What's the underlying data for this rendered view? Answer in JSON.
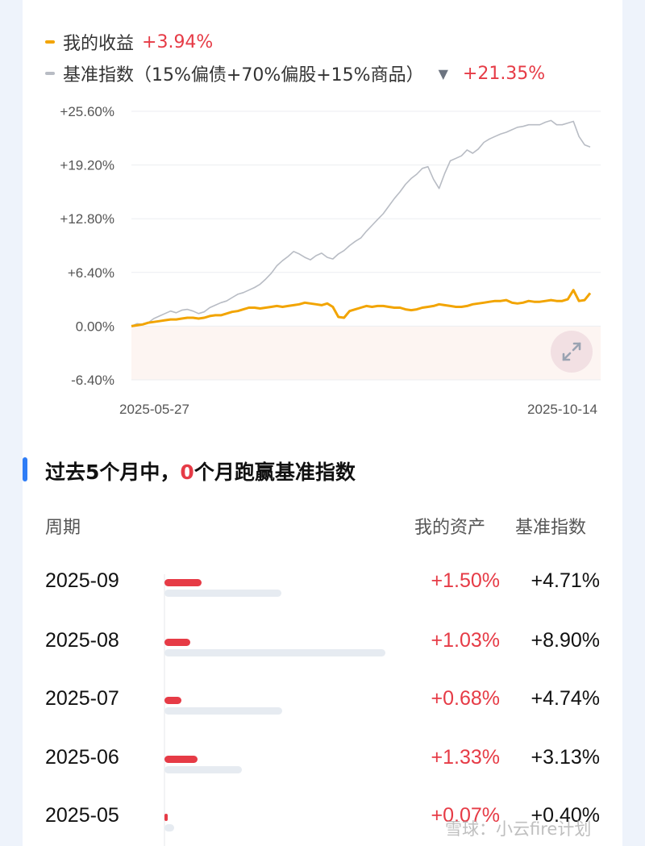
{
  "legend": {
    "mine_label": "我的收益",
    "mine_value": "+3.94%",
    "mine_color": "#f2a400",
    "bench_label": "基准指数（15%偏债+70%偏股+15%商品）",
    "bench_value": "+21.35%",
    "bench_color": "#b8bcc4",
    "dropdown_icon": "triangle-down-icon"
  },
  "chart_data": {
    "type": "line",
    "x_start": "2025-05-27",
    "x_end": "2025-10-14",
    "y_ticks": [
      "+25.60%",
      "+19.20%",
      "+12.80%",
      "+6.40%",
      "0.00%",
      "-6.40%"
    ],
    "ylim": [
      -6.4,
      25.6
    ],
    "x_tick_labels": [
      "2025-05-27",
      "2025-10-14"
    ],
    "grid": true,
    "series": [
      {
        "name": "我的收益",
        "color": "#f2a400",
        "values": [
          0.0,
          0.1,
          0.2,
          0.4,
          0.5,
          0.6,
          0.7,
          0.8,
          0.8,
          0.9,
          1.0,
          1.0,
          0.9,
          1.0,
          1.2,
          1.3,
          1.3,
          1.5,
          1.7,
          1.8,
          2.0,
          2.2,
          2.2,
          2.1,
          2.2,
          2.3,
          2.4,
          2.3,
          2.4,
          2.5,
          2.6,
          2.8,
          2.7,
          2.6,
          2.5,
          2.7,
          2.3,
          1.1,
          1.0,
          1.8,
          2.0,
          2.2,
          2.4,
          2.3,
          2.4,
          2.4,
          2.3,
          2.2,
          2.2,
          2.0,
          1.9,
          2.0,
          2.2,
          2.3,
          2.4,
          2.6,
          2.5,
          2.4,
          2.3,
          2.3,
          2.4,
          2.6,
          2.7,
          2.8,
          2.9,
          3.0,
          3.0,
          3.1,
          2.8,
          2.7,
          2.8,
          3.0,
          2.9,
          2.9,
          3.0,
          3.1,
          3.0,
          3.0,
          3.2,
          4.3,
          3.0,
          3.1,
          3.94
        ]
      },
      {
        "name": "基准指数（15%偏债+70%偏股+15%商品）",
        "color": "#b8bcc4",
        "values": [
          0.0,
          0.3,
          0.2,
          0.4,
          0.9,
          1.2,
          1.5,
          1.8,
          1.6,
          1.9,
          2.0,
          1.8,
          1.5,
          1.7,
          2.2,
          2.5,
          2.8,
          3.0,
          3.4,
          3.8,
          4.0,
          4.3,
          4.6,
          5.0,
          5.6,
          6.3,
          7.2,
          7.8,
          8.3,
          8.9,
          8.6,
          8.2,
          7.9,
          8.4,
          8.7,
          8.2,
          8.0,
          8.6,
          9.0,
          9.6,
          10.1,
          10.5,
          11.3,
          12.0,
          12.7,
          13.4,
          14.3,
          15.2,
          16.0,
          16.9,
          17.6,
          18.1,
          18.8,
          19.0,
          17.5,
          16.4,
          18.2,
          19.7,
          20.0,
          20.3,
          21.0,
          20.6,
          21.1,
          21.9,
          22.3,
          22.6,
          22.9,
          23.1,
          23.4,
          23.7,
          23.8,
          24.0,
          24.0,
          24.0,
          24.3,
          24.5,
          24.0,
          24.0,
          24.2,
          24.4,
          22.6,
          21.6,
          21.35
        ]
      }
    ]
  },
  "section": {
    "title_prefix": "过去5个月中，",
    "title_count": "0",
    "title_suffix": "个月跑赢基准指数"
  },
  "table": {
    "col_period": "周期",
    "col_mine": "我的资产",
    "col_bench": "基准指数",
    "rows": [
      {
        "period": "2025-09",
        "mine": "+1.50%",
        "bench": "+4.71%",
        "mine_val": 1.5,
        "bench_val": 4.71
      },
      {
        "period": "2025-08",
        "mine": "+1.03%",
        "bench": "+8.90%",
        "mine_val": 1.03,
        "bench_val": 8.9
      },
      {
        "period": "2025-07",
        "mine": "+0.68%",
        "bench": "+4.74%",
        "mine_val": 0.68,
        "bench_val": 4.74
      },
      {
        "period": "2025-06",
        "mine": "+1.33%",
        "bench": "+3.13%",
        "mine_val": 1.33,
        "bench_val": 3.13
      },
      {
        "period": "2025-05",
        "mine": "+0.07%",
        "bench": "+0.40%",
        "mine_val": 0.07,
        "bench_val": 0.4
      }
    ]
  },
  "watermark": "雪球：小云fire计划"
}
